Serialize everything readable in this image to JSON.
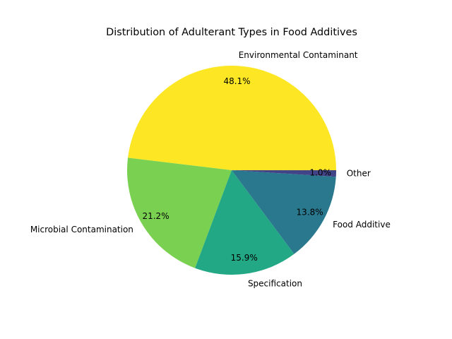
{
  "chart_data": {
    "type": "pie",
    "title": "Distribution of Adulterant Types in Food Additives",
    "slices": [
      {
        "label": "Environmental Contaminant",
        "value": 48.1,
        "pct_label": "48.1%",
        "color": "#fde725"
      },
      {
        "label": "Microbial Contamination",
        "value": 21.2,
        "pct_label": "21.2%",
        "color": "#7ad151"
      },
      {
        "label": "Specification",
        "value": 15.9,
        "pct_label": "15.9%",
        "color": "#22a884"
      },
      {
        "label": "Food Additive",
        "value": 13.8,
        "pct_label": "13.8%",
        "color": "#2a788e"
      },
      {
        "label": "Other",
        "value": 1.0,
        "pct_label": "1.0%",
        "color": "#414487"
      }
    ],
    "start_angle_deg": 0,
    "direction": "counterclockwise",
    "legend": "none"
  }
}
